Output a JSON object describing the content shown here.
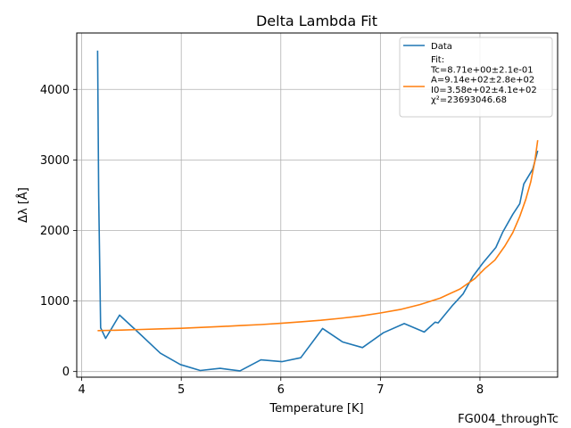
{
  "chart_data": {
    "type": "line",
    "title": "Delta Lambda Fit",
    "xlabel": "Temperature [K]",
    "ylabel": "Δλ [Å]",
    "footer_text": "FG004_throughTc",
    "xlim": [
      3.95,
      8.78
    ],
    "ylim": [
      -80,
      4800
    ],
    "xticks": [
      4,
      5,
      6,
      7,
      8
    ],
    "yticks": [
      0,
      1000,
      2000,
      3000,
      4000
    ],
    "grid": true,
    "legend_position": "top-right",
    "series": [
      {
        "name": "Data",
        "color": "#1f77b4",
        "x": [
          4.16,
          4.17,
          4.19,
          4.24,
          4.38,
          4.58,
          4.79,
          4.99,
          5.19,
          5.39,
          5.59,
          5.8,
          6.01,
          6.2,
          6.42,
          6.62,
          6.82,
          7.03,
          7.24,
          7.44,
          7.48,
          7.55,
          7.58,
          7.62,
          7.72,
          7.83,
          7.93,
          8.03,
          8.16,
          8.23,
          8.33,
          8.4,
          8.44,
          8.53,
          8.58
        ],
        "y": [
          4550,
          2500,
          620,
          470,
          800,
          540,
          260,
          100,
          15,
          45,
          10,
          165,
          140,
          195,
          610,
          420,
          340,
          550,
          680,
          560,
          610,
          700,
          690,
          760,
          930,
          1100,
          1350,
          1540,
          1760,
          1980,
          2230,
          2380,
          2660,
          2870,
          3130
        ]
      },
      {
        "name": "Fit:\nTc=8.71e+00±2.1e-01\nA=9.14e+02±2.8e+02\nI0=3.58e+02±4.1e+02\nχ²=23693046.68",
        "color": "#ff7f0e",
        "x": [
          4.16,
          4.4,
          4.6,
          4.8,
          5.0,
          5.2,
          5.4,
          5.6,
          5.8,
          6.0,
          6.2,
          6.4,
          6.6,
          6.8,
          7.0,
          7.2,
          7.4,
          7.6,
          7.8,
          7.95,
          8.05,
          8.15,
          8.25,
          8.33,
          8.4,
          8.46,
          8.51,
          8.55,
          8.58
        ],
        "y": [
          580,
          588,
          596,
          605,
          613,
          625,
          638,
          652,
          666,
          684,
          705,
          727,
          755,
          787,
          830,
          880,
          950,
          1040,
          1170,
          1320,
          1460,
          1580,
          1780,
          1970,
          2200,
          2440,
          2690,
          2970,
          3280
        ]
      }
    ]
  }
}
